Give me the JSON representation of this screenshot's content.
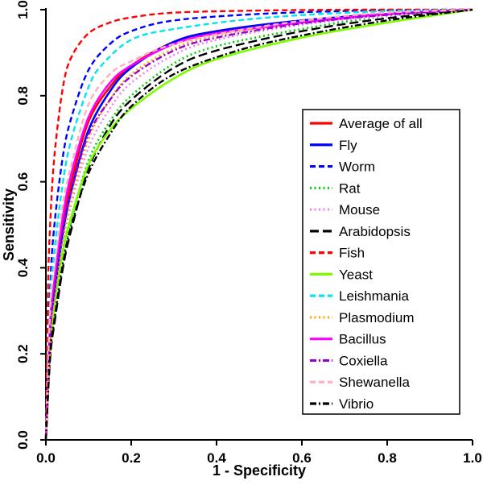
{
  "chart_data": {
    "type": "line",
    "title": "",
    "xlabel": "1 - Specificity",
    "ylabel": "Sensitivity",
    "xlim": [
      0.0,
      1.0
    ],
    "ylim": [
      0.0,
      1.0
    ],
    "x_ticks": [
      "0.0",
      "0.2",
      "0.4",
      "0.6",
      "0.8",
      "1.0"
    ],
    "y_ticks": [
      "0.0",
      "0.2",
      "0.4",
      "0.6",
      "0.8",
      "1.0"
    ],
    "grid": false,
    "legend_position": "right-center-boxed",
    "series": [
      {
        "name": "Average of all",
        "color": "#ff0000",
        "dash": "",
        "width": 2.6,
        "points": [
          [
            0,
            0
          ],
          [
            0.01,
            0.25
          ],
          [
            0.02,
            0.35
          ],
          [
            0.04,
            0.5
          ],
          [
            0.06,
            0.6
          ],
          [
            0.1,
            0.74
          ],
          [
            0.15,
            0.82
          ],
          [
            0.2,
            0.87
          ],
          [
            0.3,
            0.925
          ],
          [
            0.4,
            0.95
          ],
          [
            0.6,
            0.975
          ],
          [
            0.8,
            0.99
          ],
          [
            1,
            1
          ]
        ]
      },
      {
        "name": "Fly",
        "color": "#0000ff",
        "dash": "",
        "width": 2.6,
        "points": [
          [
            0,
            0
          ],
          [
            0.01,
            0.24
          ],
          [
            0.02,
            0.34
          ],
          [
            0.04,
            0.48
          ],
          [
            0.06,
            0.58
          ],
          [
            0.1,
            0.72
          ],
          [
            0.15,
            0.81
          ],
          [
            0.2,
            0.865
          ],
          [
            0.3,
            0.925
          ],
          [
            0.4,
            0.95
          ],
          [
            0.6,
            0.975
          ],
          [
            0.8,
            0.99
          ],
          [
            1,
            1
          ]
        ]
      },
      {
        "name": "Worm",
        "color": "#0000ff",
        "dash": "7,4",
        "width": 2.4,
        "points": [
          [
            0,
            0
          ],
          [
            0.01,
            0.35
          ],
          [
            0.02,
            0.5
          ],
          [
            0.04,
            0.66
          ],
          [
            0.06,
            0.75
          ],
          [
            0.1,
            0.86
          ],
          [
            0.15,
            0.92
          ],
          [
            0.2,
            0.95
          ],
          [
            0.3,
            0.975
          ],
          [
            0.5,
            0.99
          ],
          [
            0.75,
            0.998
          ],
          [
            1,
            1
          ]
        ]
      },
      {
        "name": "Rat",
        "color": "#00cd00",
        "dash": "2,3.5",
        "width": 2.6,
        "points": [
          [
            0,
            0
          ],
          [
            0.01,
            0.2
          ],
          [
            0.02,
            0.29
          ],
          [
            0.04,
            0.42
          ],
          [
            0.06,
            0.51
          ],
          [
            0.1,
            0.65
          ],
          [
            0.15,
            0.74
          ],
          [
            0.2,
            0.8
          ],
          [
            0.3,
            0.875
          ],
          [
            0.4,
            0.915
          ],
          [
            0.6,
            0.955
          ],
          [
            0.8,
            0.985
          ],
          [
            1,
            1
          ]
        ]
      },
      {
        "name": "Mouse",
        "color": "#ee82ee",
        "dash": "2,3.5",
        "width": 2.6,
        "points": [
          [
            0,
            0
          ],
          [
            0.01,
            0.23
          ],
          [
            0.02,
            0.33
          ],
          [
            0.04,
            0.46
          ],
          [
            0.06,
            0.55
          ],
          [
            0.1,
            0.68
          ],
          [
            0.15,
            0.77
          ],
          [
            0.2,
            0.83
          ],
          [
            0.3,
            0.895
          ],
          [
            0.4,
            0.93
          ],
          [
            0.6,
            0.965
          ],
          [
            0.8,
            0.985
          ],
          [
            1,
            1
          ]
        ]
      },
      {
        "name": "Arabidopsis",
        "color": "#000000",
        "dash": "11,5",
        "width": 2.4,
        "points": [
          [
            0,
            0
          ],
          [
            0.01,
            0.19
          ],
          [
            0.02,
            0.27
          ],
          [
            0.04,
            0.4
          ],
          [
            0.06,
            0.49
          ],
          [
            0.1,
            0.63
          ],
          [
            0.15,
            0.73
          ],
          [
            0.2,
            0.79
          ],
          [
            0.3,
            0.865
          ],
          [
            0.4,
            0.905
          ],
          [
            0.6,
            0.95
          ],
          [
            0.8,
            0.98
          ],
          [
            1,
            1
          ]
        ]
      },
      {
        "name": "Fish",
        "color": "#ff0000",
        "dash": "7,4",
        "width": 2.4,
        "points": [
          [
            0,
            0
          ],
          [
            0.005,
            0.35
          ],
          [
            0.01,
            0.5
          ],
          [
            0.02,
            0.66
          ],
          [
            0.04,
            0.82
          ],
          [
            0.06,
            0.89
          ],
          [
            0.1,
            0.945
          ],
          [
            0.15,
            0.97
          ],
          [
            0.2,
            0.982
          ],
          [
            0.3,
            0.993
          ],
          [
            0.5,
            0.998
          ],
          [
            0.75,
            1
          ],
          [
            1,
            1
          ]
        ]
      },
      {
        "name": "Yeast",
        "color": "#7cfc00",
        "dash": "",
        "width": 2.6,
        "points": [
          [
            0,
            0
          ],
          [
            0.01,
            0.22
          ],
          [
            0.02,
            0.31
          ],
          [
            0.04,
            0.44
          ],
          [
            0.06,
            0.52
          ],
          [
            0.1,
            0.64
          ],
          [
            0.15,
            0.72
          ],
          [
            0.2,
            0.77
          ],
          [
            0.3,
            0.84
          ],
          [
            0.4,
            0.885
          ],
          [
            0.6,
            0.935
          ],
          [
            0.8,
            0.97
          ],
          [
            1,
            1
          ]
        ]
      },
      {
        "name": "Leishmania",
        "color": "#00e5ee",
        "dash": "7,4",
        "width": 2.4,
        "points": [
          [
            0,
            0
          ],
          [
            0.01,
            0.32
          ],
          [
            0.02,
            0.44
          ],
          [
            0.04,
            0.6
          ],
          [
            0.06,
            0.7
          ],
          [
            0.1,
            0.82
          ],
          [
            0.13,
            0.87
          ],
          [
            0.2,
            0.93
          ],
          [
            0.3,
            0.955
          ],
          [
            0.5,
            0.98
          ],
          [
            0.75,
            0.995
          ],
          [
            1,
            1
          ]
        ]
      },
      {
        "name": "Plasmodium",
        "color": "#ffa500",
        "dash": "2,3.5",
        "width": 2.6,
        "points": [
          [
            0,
            0
          ],
          [
            0.01,
            0.22
          ],
          [
            0.02,
            0.32
          ],
          [
            0.04,
            0.46
          ],
          [
            0.06,
            0.56
          ],
          [
            0.1,
            0.7
          ],
          [
            0.15,
            0.79
          ],
          [
            0.2,
            0.85
          ],
          [
            0.3,
            0.91
          ],
          [
            0.4,
            0.94
          ],
          [
            0.6,
            0.97
          ],
          [
            0.8,
            0.99
          ],
          [
            1,
            1
          ]
        ]
      },
      {
        "name": "Bacillus",
        "color": "#ff00ff",
        "dash": "",
        "width": 2.6,
        "points": [
          [
            0,
            0
          ],
          [
            0.01,
            0.27
          ],
          [
            0.02,
            0.37
          ],
          [
            0.04,
            0.52
          ],
          [
            0.06,
            0.62
          ],
          [
            0.1,
            0.75
          ],
          [
            0.15,
            0.83
          ],
          [
            0.2,
            0.87
          ],
          [
            0.3,
            0.92
          ],
          [
            0.4,
            0.945
          ],
          [
            0.6,
            0.97
          ],
          [
            0.8,
            0.99
          ],
          [
            1,
            1
          ]
        ]
      },
      {
        "name": "Coxiella",
        "color": "#9400d3",
        "dash": "8,3,2,3",
        "width": 2.4,
        "points": [
          [
            0,
            0
          ],
          [
            0.01,
            0.25
          ],
          [
            0.02,
            0.35
          ],
          [
            0.04,
            0.49
          ],
          [
            0.06,
            0.58
          ],
          [
            0.1,
            0.71
          ],
          [
            0.15,
            0.79
          ],
          [
            0.2,
            0.845
          ],
          [
            0.3,
            0.905
          ],
          [
            0.4,
            0.935
          ],
          [
            0.6,
            0.968
          ],
          [
            0.8,
            0.988
          ],
          [
            1,
            1
          ]
        ]
      },
      {
        "name": "Shewanella",
        "color": "#ffb0c0",
        "dash": "7,4",
        "width": 2.4,
        "points": [
          [
            0,
            0
          ],
          [
            0.01,
            0.3
          ],
          [
            0.02,
            0.4
          ],
          [
            0.04,
            0.55
          ],
          [
            0.06,
            0.64
          ],
          [
            0.1,
            0.78
          ],
          [
            0.15,
            0.85
          ],
          [
            0.2,
            0.88
          ],
          [
            0.3,
            0.92
          ],
          [
            0.5,
            0.96
          ],
          [
            0.75,
            0.99
          ],
          [
            1,
            1
          ]
        ]
      },
      {
        "name": "Vibrio",
        "color": "#000000",
        "dash": "8,3,2,3",
        "width": 2.4,
        "points": [
          [
            0,
            0
          ],
          [
            0.01,
            0.2
          ],
          [
            0.02,
            0.28
          ],
          [
            0.04,
            0.41
          ],
          [
            0.06,
            0.5
          ],
          [
            0.1,
            0.62
          ],
          [
            0.15,
            0.71
          ],
          [
            0.2,
            0.775
          ],
          [
            0.3,
            0.85
          ],
          [
            0.45,
            0.905
          ],
          [
            0.6,
            0.94
          ],
          [
            0.8,
            0.975
          ],
          [
            1,
            1
          ]
        ]
      }
    ]
  }
}
